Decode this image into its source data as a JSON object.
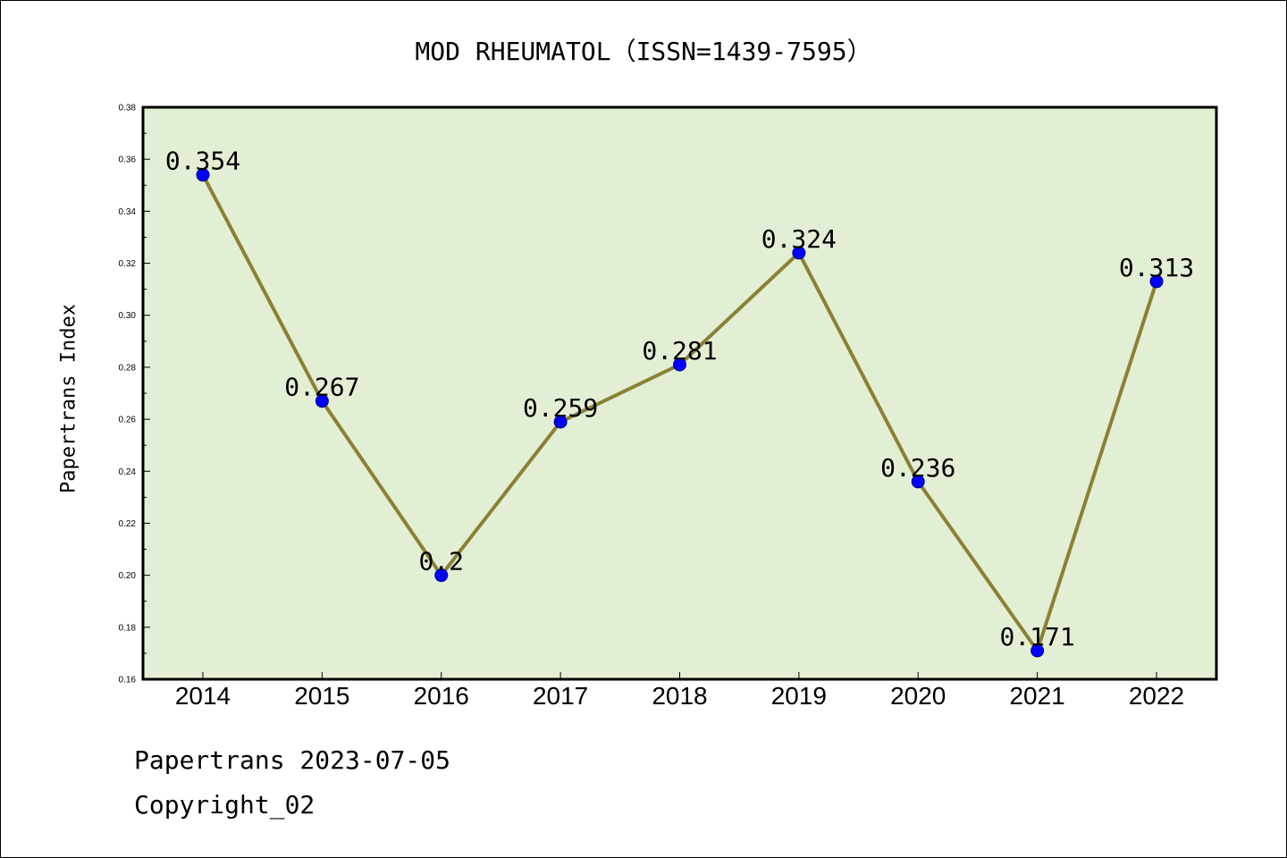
{
  "chart_data": {
    "type": "line",
    "title": "MOD RHEUMATOL（ISSN=1439-7595）",
    "ylabel": "Papertrans Index",
    "xlabel": "",
    "categories": [
      "2014",
      "2015",
      "2016",
      "2017",
      "2018",
      "2019",
      "2020",
      "2021",
      "2022"
    ],
    "values": [
      0.354,
      0.267,
      0.2,
      0.259,
      0.281,
      0.324,
      0.236,
      0.171,
      0.313
    ],
    "data_labels": [
      "0.354",
      "0.267",
      "0.2",
      "0.259",
      "0.281",
      "0.324",
      "0.236",
      "0.171",
      "0.313"
    ],
    "ylim": [
      0.16,
      0.38
    ],
    "yticks": [
      "0.16",
      "0.18",
      "0.20",
      "0.22",
      "0.24",
      "0.26",
      "0.28",
      "0.30",
      "0.32",
      "0.34",
      "0.36",
      "0.38"
    ],
    "grid": false,
    "legend": "none",
    "colors": {
      "plot_background": "#e2efd4",
      "line": "#8b8035",
      "marker": "#0000ff"
    }
  },
  "footer": {
    "line1": "Papertrans 2023-07-05",
    "line2": "Copyright_02"
  }
}
